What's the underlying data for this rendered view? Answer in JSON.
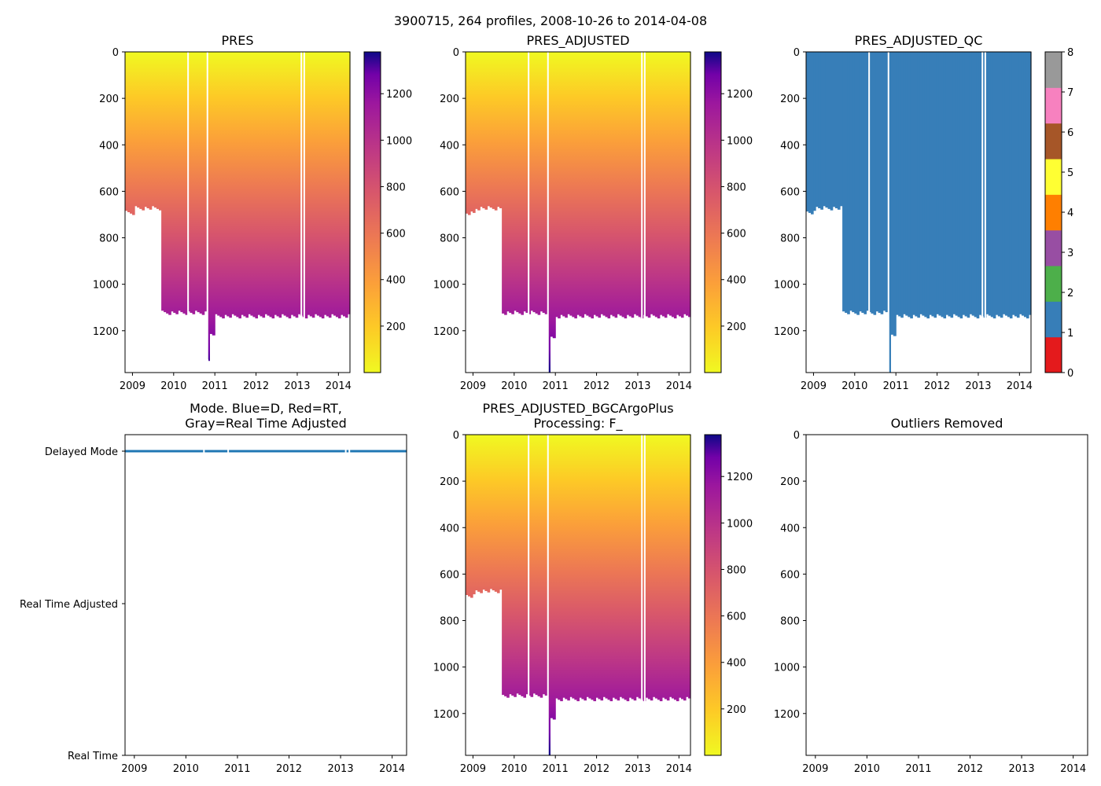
{
  "figure_title": "3900715, 264 profiles, 2008-10-26 to 2014-04-08",
  "chart_data": [
    {
      "type": "heatmap",
      "title": "PRES",
      "x_range": [
        2008.82,
        2014.28
      ],
      "x_ticks": [
        "2009",
        "2010",
        "2011",
        "2012",
        "2013",
        "2014"
      ],
      "y_range": [
        0,
        1380
      ],
      "y_inverted": true,
      "y_ticks": [
        "0",
        "200",
        "400",
        "600",
        "800",
        "1000",
        "1200"
      ],
      "colorscale": "plasma_r",
      "colorbar_range": [
        0,
        1380
      ],
      "colorbar_ticks": [
        "200",
        "400",
        "600",
        "800",
        "1000",
        "1200"
      ],
      "profile_segments": [
        {
          "from": 2008.82,
          "to": 2009.05,
          "max_depth": 690
        },
        {
          "from": 2009.05,
          "to": 2009.7,
          "max_depth": 670
        },
        {
          "from": 2009.7,
          "to": 2010.8,
          "max_depth": 1120
        },
        {
          "from": 2010.82,
          "to": 2010.87,
          "max_depth": 1330
        },
        {
          "from": 2010.87,
          "to": 2011.0,
          "max_depth": 1220
        },
        {
          "from": 2011.0,
          "to": 2014.28,
          "max_depth": 1135
        }
      ],
      "gaps": [
        2010.35,
        2010.82,
        2013.1,
        2013.17
      ]
    },
    {
      "type": "heatmap",
      "title": "PRES_ADJUSTED",
      "x_range": [
        2008.82,
        2014.28
      ],
      "x_ticks": [
        "2009",
        "2010",
        "2011",
        "2012",
        "2013",
        "2014"
      ],
      "y_range": [
        0,
        1380
      ],
      "y_inverted": true,
      "y_ticks": [
        "0",
        "200",
        "400",
        "600",
        "800",
        "1000",
        "1200"
      ],
      "colorscale": "plasma_r",
      "colorbar_range": [
        0,
        1380
      ],
      "colorbar_ticks": [
        "200",
        "400",
        "600",
        "800",
        "1000",
        "1200"
      ],
      "profile_segments": [
        {
          "from": 2008.82,
          "to": 2009.05,
          "max_depth": 690
        },
        {
          "from": 2009.05,
          "to": 2009.7,
          "max_depth": 670
        },
        {
          "from": 2009.7,
          "to": 2010.8,
          "max_depth": 1120
        },
        {
          "from": 2010.82,
          "to": 2010.87,
          "max_depth": 1380
        },
        {
          "from": 2010.87,
          "to": 2011.0,
          "max_depth": 1220
        },
        {
          "from": 2011.0,
          "to": 2014.28,
          "max_depth": 1135
        }
      ],
      "gaps": [
        2010.35,
        2010.82,
        2013.1,
        2013.17
      ]
    },
    {
      "type": "heatmap",
      "title": "PRES_ADJUSTED_QC",
      "x_range": [
        2008.82,
        2014.28
      ],
      "x_ticks": [
        "2009",
        "2010",
        "2011",
        "2012",
        "2013",
        "2014"
      ],
      "y_range": [
        0,
        1380
      ],
      "y_inverted": true,
      "y_ticks": [
        "0",
        "200",
        "400",
        "600",
        "800",
        "1000",
        "1200"
      ],
      "qc_value": 1,
      "colorbar_ticks": [
        "0",
        "1",
        "2",
        "3",
        "4",
        "5",
        "6",
        "7",
        "8"
      ],
      "qc_colors": [
        "#e41a1c",
        "#377eb8",
        "#4daf4a",
        "#984ea3",
        "#ff7f00",
        "#ffff33",
        "#a65628",
        "#f781bf",
        "#999999"
      ],
      "profile_segments": [
        {
          "from": 2008.82,
          "to": 2009.05,
          "max_depth": 690
        },
        {
          "from": 2009.05,
          "to": 2009.7,
          "max_depth": 670
        },
        {
          "from": 2009.7,
          "to": 2010.8,
          "max_depth": 1120
        },
        {
          "from": 2010.82,
          "to": 2010.87,
          "max_depth": 1380
        },
        {
          "from": 2010.87,
          "to": 2011.0,
          "max_depth": 1220
        },
        {
          "from": 2011.0,
          "to": 2014.28,
          "max_depth": 1135
        }
      ],
      "gaps": [
        2010.35,
        2010.82,
        2013.1,
        2013.17
      ]
    },
    {
      "type": "scatter",
      "title_line1": "Mode. Blue=D, Red=RT,",
      "title_line2": "Gray=Real Time Adjusted",
      "x_range": [
        2008.82,
        2014.28
      ],
      "x_ticks": [
        "2009",
        "2010",
        "2011",
        "2012",
        "2013",
        "2014"
      ],
      "y_categories": [
        "Delayed Mode",
        "Real Time Adjusted",
        "Real Time"
      ],
      "series": [
        {
          "name": "Delayed Mode",
          "color": "#1f77b4",
          "x_from": 2008.82,
          "x_to": 2014.28,
          "gaps": [
            2010.35,
            2010.82,
            2013.1,
            2013.17
          ]
        }
      ]
    },
    {
      "type": "heatmap",
      "title_line1": "PRES_ADJUSTED_BGCArgoPlus",
      "title_line2": "Processing: F_",
      "x_range": [
        2008.82,
        2014.28
      ],
      "x_ticks": [
        "2009",
        "2010",
        "2011",
        "2012",
        "2013",
        "2014"
      ],
      "y_range": [
        0,
        1380
      ],
      "y_inverted": true,
      "y_ticks": [
        "0",
        "200",
        "400",
        "600",
        "800",
        "1000",
        "1200"
      ],
      "colorscale": "plasma_r",
      "colorbar_range": [
        0,
        1380
      ],
      "colorbar_ticks": [
        "200",
        "400",
        "600",
        "800",
        "1000",
        "1200"
      ],
      "profile_segments": [
        {
          "from": 2008.82,
          "to": 2009.05,
          "max_depth": 690
        },
        {
          "from": 2009.05,
          "to": 2009.7,
          "max_depth": 670
        },
        {
          "from": 2009.7,
          "to": 2010.8,
          "max_depth": 1120
        },
        {
          "from": 2010.82,
          "to": 2010.87,
          "max_depth": 1380
        },
        {
          "from": 2010.87,
          "to": 2011.0,
          "max_depth": 1220
        },
        {
          "from": 2011.0,
          "to": 2014.28,
          "max_depth": 1135
        }
      ],
      "gaps": [
        2010.35,
        2010.82,
        2013.1,
        2013.17
      ]
    },
    {
      "type": "scatter",
      "title": "Outliers Removed",
      "x_range": [
        2008.82,
        2014.28
      ],
      "x_ticks": [
        "2009",
        "2010",
        "2011",
        "2012",
        "2013",
        "2014"
      ],
      "y_range": [
        0,
        1380
      ],
      "y_inverted": true,
      "y_ticks": [
        "0",
        "200",
        "400",
        "600",
        "800",
        "1000",
        "1200"
      ],
      "series": []
    }
  ]
}
